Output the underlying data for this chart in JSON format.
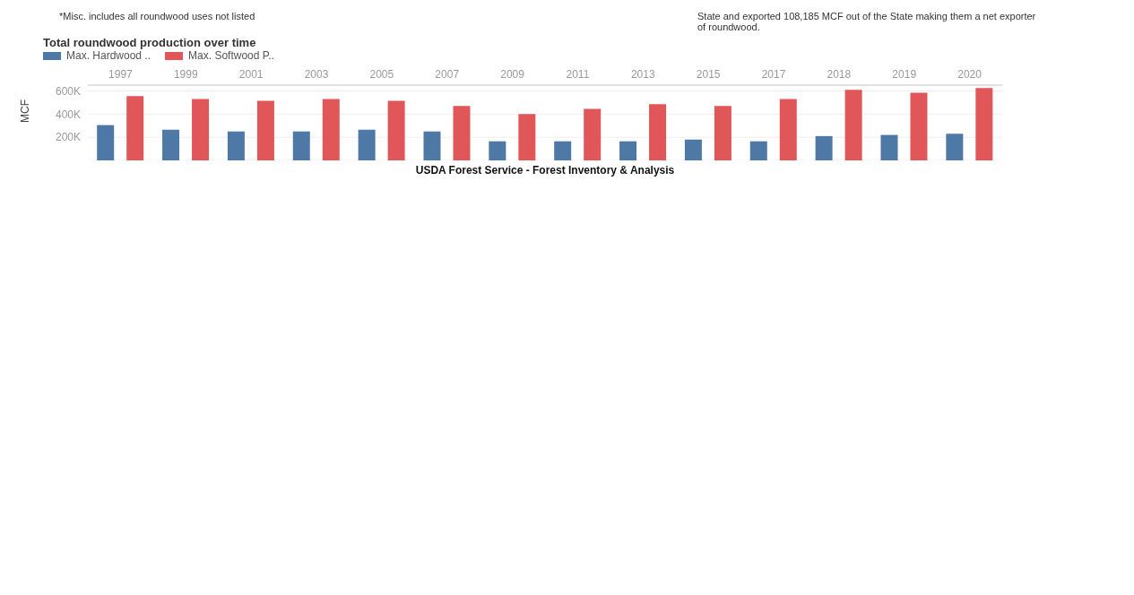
{
  "chart_data": {
    "type": "bar",
    "title": "Total roundwood production over time",
    "ylabel": "MCF",
    "categories": [
      "1997",
      "1999",
      "2001",
      "2003",
      "2005",
      "2007",
      "2009",
      "2011",
      "2013",
      "2015",
      "2017",
      "2018",
      "2019",
      "2020"
    ],
    "series": [
      {
        "name": "Max. Hardwood ..",
        "color": "#4e79a7",
        "values": [
          305000,
          265000,
          250000,
          250000,
          265000,
          250000,
          165000,
          165000,
          165000,
          180000,
          165000,
          210000,
          220000,
          230000
        ]
      },
      {
        "name": "Max. Softwood P..",
        "color": "#e15759",
        "values": [
          555000,
          530000,
          515000,
          530000,
          515000,
          470000,
          400000,
          445000,
          485000,
          470000,
          530000,
          610000,
          585000,
          625000
        ]
      }
    ],
    "ylim": [
      0,
      650000
    ],
    "yticks": [
      {
        "value": 200000,
        "label": "200K"
      },
      {
        "value": 400000,
        "label": "400K"
      },
      {
        "value": 600000,
        "label": "600K"
      }
    ],
    "grid": "y",
    "legend": "top left",
    "annotations": [
      "*Misc. includes all roundwood uses not listed",
      "State and exported 108,185 MCF out of the State making them a net exporter of roundwood.",
      "USDA Forest Service - Forest Inventory & Analysis"
    ]
  }
}
